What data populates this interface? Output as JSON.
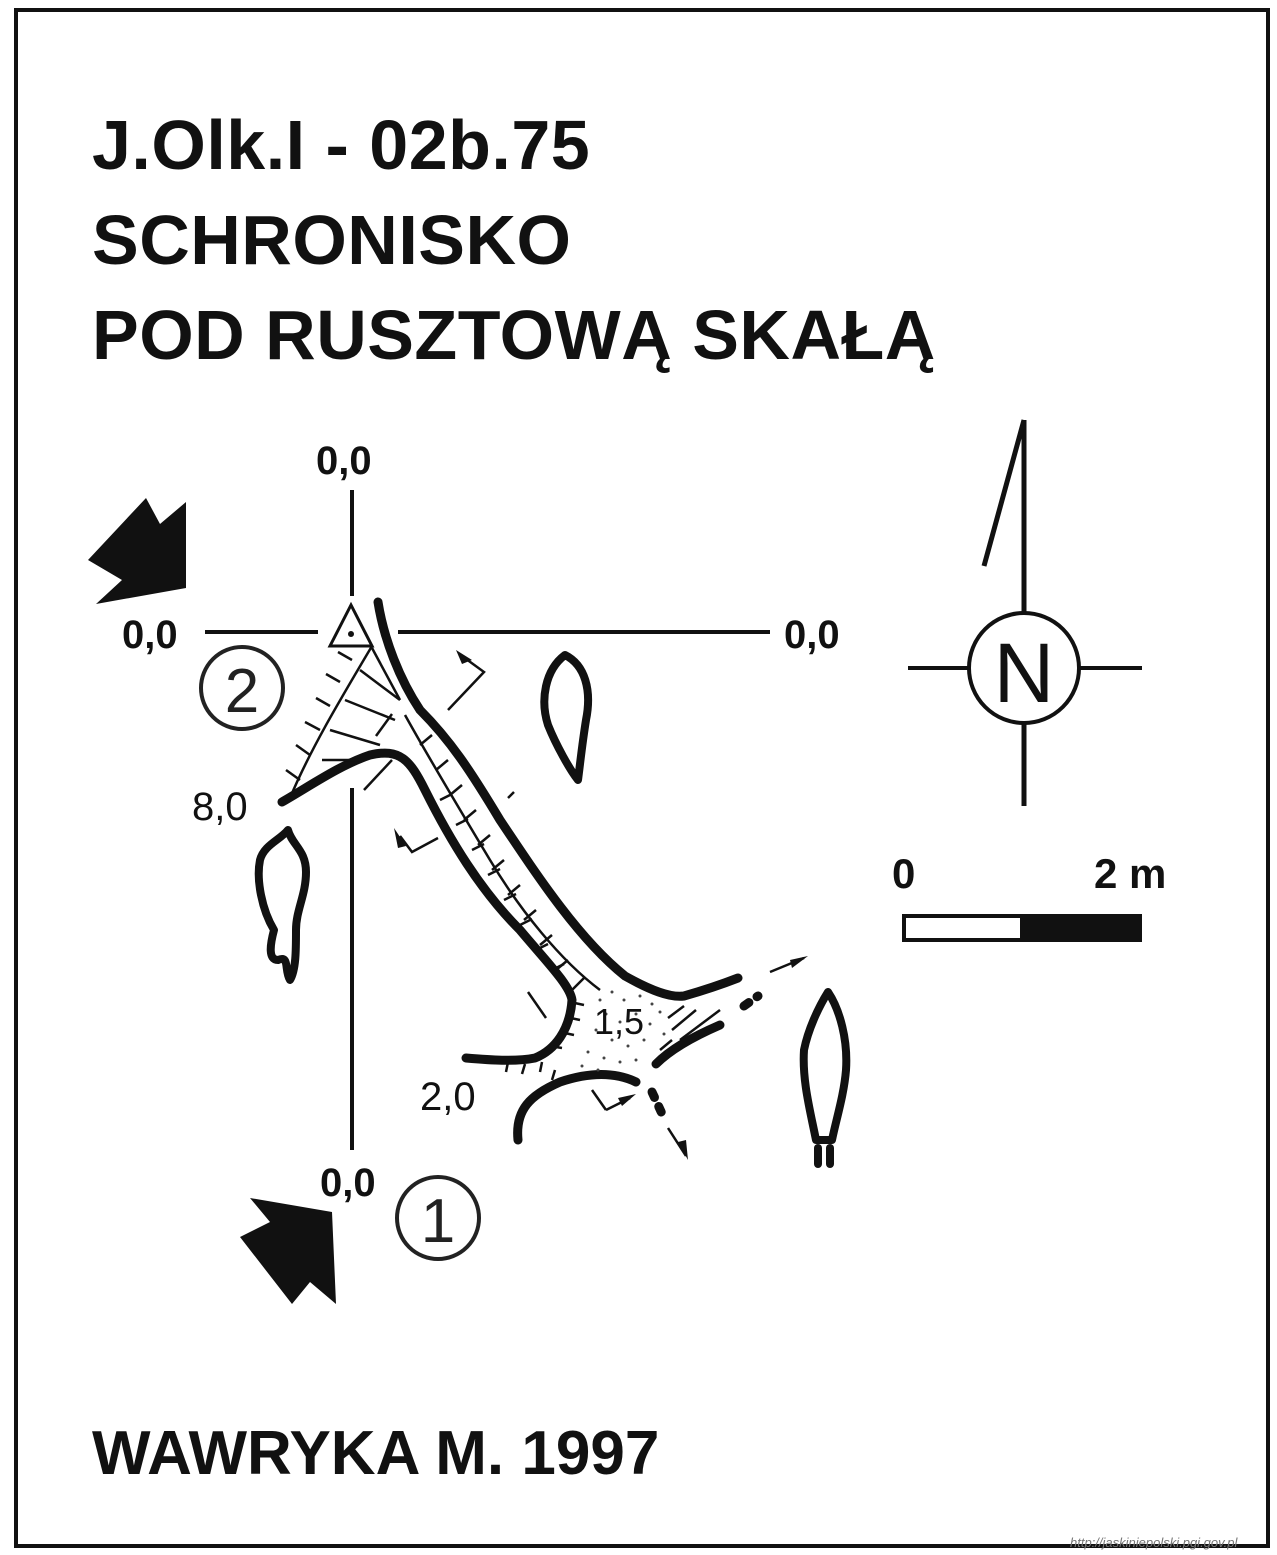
{
  "title": {
    "code": "J.Olk.I - 02b.75",
    "line2": "SCHRONISKO",
    "line3": "POD RUSZTOWĄ SKAŁĄ"
  },
  "author": "WAWRYKA M. 1997",
  "watermark": "http://jaskiniepolski.pgi.gov.pl",
  "compass": {
    "north_label": "N"
  },
  "scale_bar": {
    "start_label": "0",
    "end_label": "2 m"
  },
  "profile_labels": {
    "top": "0,0",
    "left": "0,0",
    "right": "0,0",
    "bottom": "0,0"
  },
  "depth_labels": {
    "depth_a": "8,0",
    "depth_b": "1,5",
    "depth_c": "2,0"
  },
  "entrances": {
    "entrance_1": "1",
    "entrance_2": "2"
  }
}
